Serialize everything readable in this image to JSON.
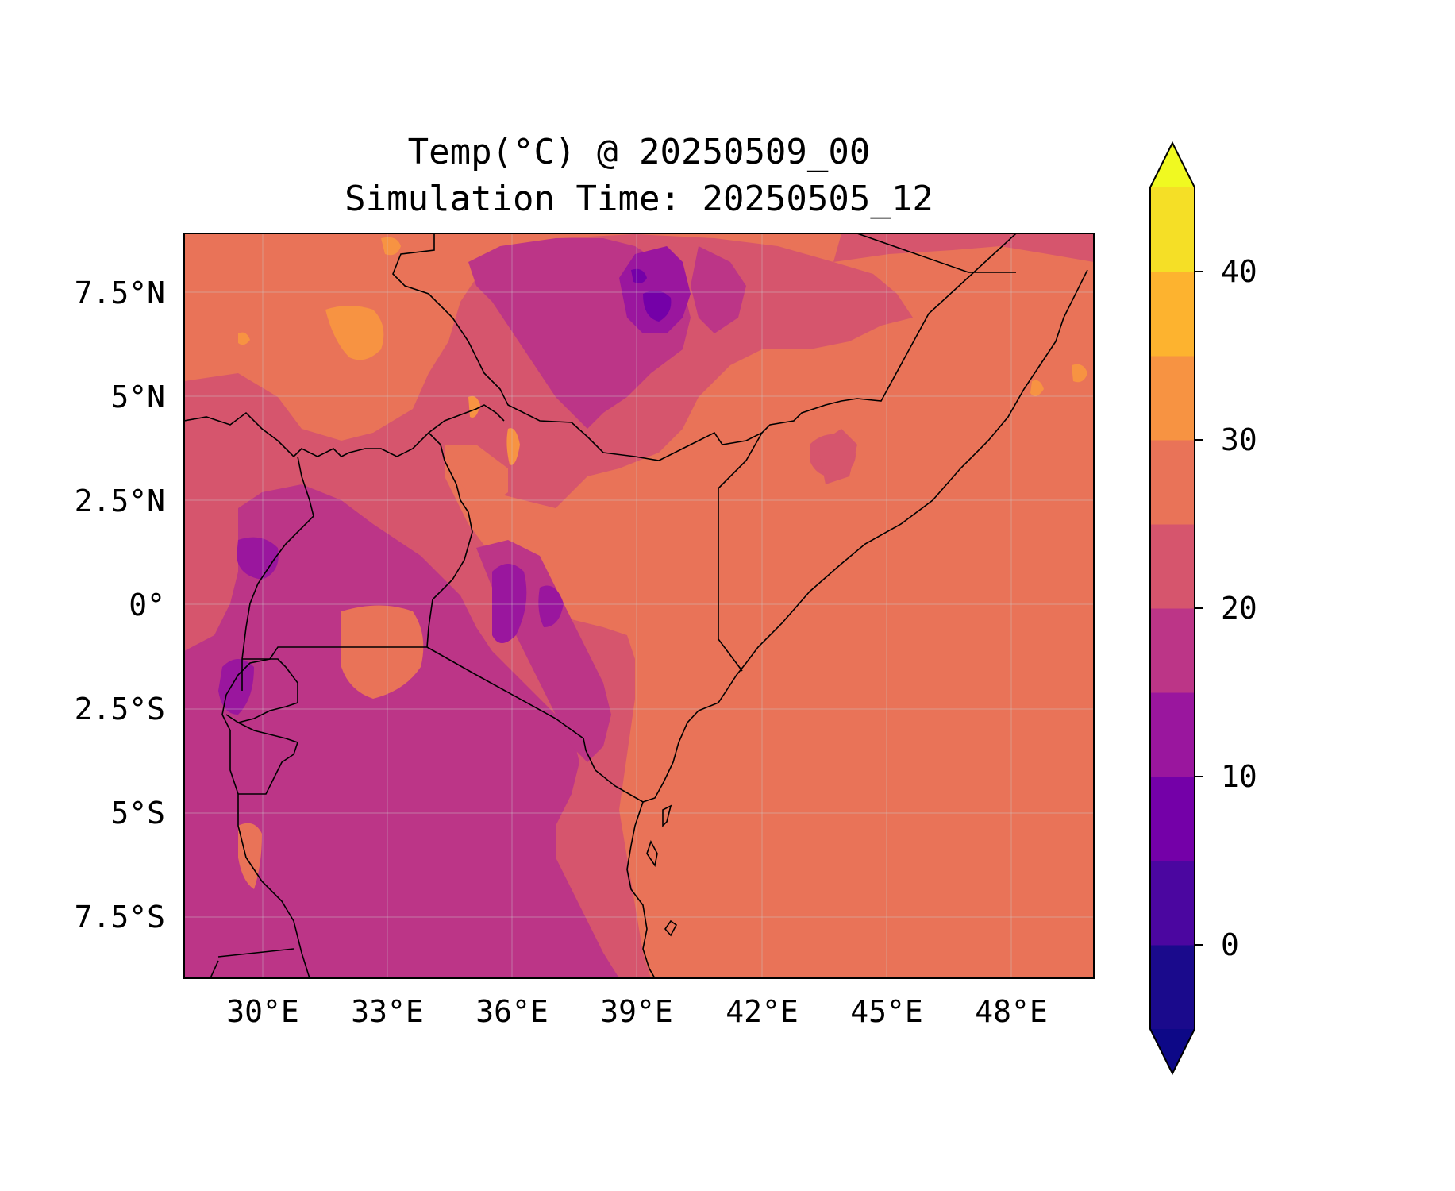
{
  "title": {
    "line1": "Temp(°C) @ 20250509_00",
    "line2": "Simulation Time: 20250505_12"
  },
  "map": {
    "region": "East Africa",
    "lon_range": [
      28.0,
      50.0
    ],
    "lat_range": [
      -9.0,
      9.0
    ],
    "x_ticks": [
      "30°E",
      "33°E",
      "36°E",
      "39°E",
      "42°E",
      "45°E",
      "48°E"
    ],
    "y_ticks": [
      "7.5°N",
      "5°N",
      "2.5°N",
      "0°",
      "2.5°S",
      "5°S",
      "7.5°S"
    ],
    "gridlines": true,
    "ocean_color": "#e97358",
    "background_level_color": "#e97358"
  },
  "colorbar": {
    "label_ticks": [
      "0",
      "10",
      "20",
      "30",
      "40"
    ],
    "levels": [
      -5,
      0,
      5,
      10,
      15,
      20,
      25,
      30,
      35,
      40,
      45
    ],
    "colors": [
      "#1a0a8c",
      "#4b06a0",
      "#7400a8",
      "#9a169e",
      "#bc3587",
      "#d6556d",
      "#e97358",
      "#f79342",
      "#fdb32f",
      "#f5df26"
    ],
    "under_color": "#0d0887",
    "over_color": "#f0f921",
    "extend": "both"
  }
}
